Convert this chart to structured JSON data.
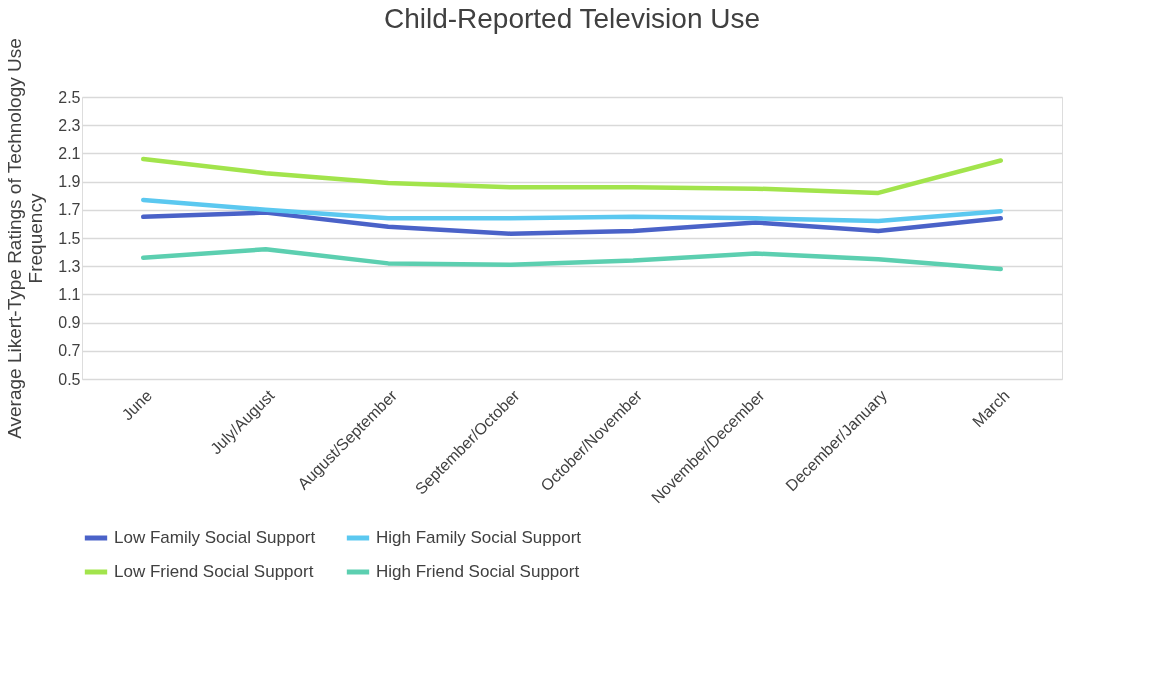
{
  "chart_data": {
    "type": "line",
    "title": "Child-Reported Television Use",
    "ylabel": "Average Likert-Type Ratings of Technology Use Frequency",
    "categories": [
      "June",
      "July/August",
      "August/September",
      "September/October",
      "October/November",
      "November/December",
      "December/January",
      "March"
    ],
    "series": [
      {
        "name": "Low Family Social Support",
        "color": "#4a62c8",
        "values": [
          1.65,
          1.68,
          1.58,
          1.53,
          1.55,
          1.61,
          1.55,
          1.64
        ]
      },
      {
        "name": "High Family Social Support",
        "color": "#5bc8f0",
        "values": [
          1.77,
          1.7,
          1.64,
          1.64,
          1.65,
          1.64,
          1.62,
          1.69
        ]
      },
      {
        "name": "Low Friend Social Support",
        "color": "#a2e44c",
        "values": [
          2.06,
          1.96,
          1.89,
          1.86,
          1.86,
          1.85,
          1.82,
          2.05
        ]
      },
      {
        "name": "High Friend Social Support",
        "color": "#5ccfb0",
        "values": [
          1.36,
          1.42,
          1.32,
          1.31,
          1.34,
          1.39,
          1.35,
          1.28
        ]
      }
    ],
    "ylim": [
      0.5,
      2.5
    ],
    "yticks": [
      0.5,
      0.7,
      0.9,
      1.1,
      1.3,
      1.5,
      1.7,
      1.9,
      2.1,
      2.3,
      2.5
    ],
    "grid": "y",
    "legend": "bottom",
    "marker": "none",
    "line_style": "solid"
  }
}
